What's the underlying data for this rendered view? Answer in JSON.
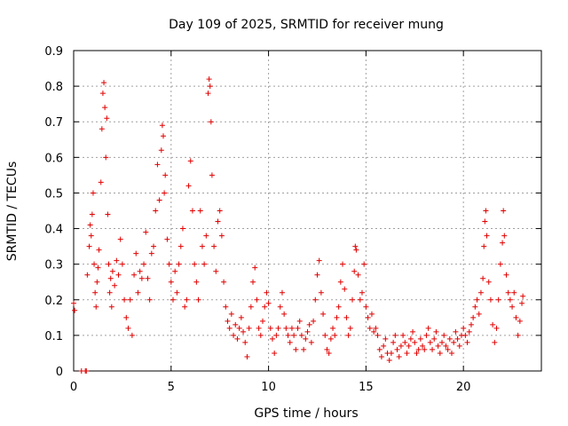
{
  "colors": {
    "series": "#e00000",
    "grid": "#a0a0a0",
    "axis": "#000000",
    "background": "#ffffff"
  },
  "chart_data": {
    "type": "scatter",
    "title": "Day 109 of 2025, SRMTID for receiver mung",
    "xlabel": "GPS time / hours",
    "ylabel": "SRMTID / TECUs",
    "xlim": [
      0,
      24
    ],
    "ylim": [
      0,
      0.9
    ],
    "xticks": [
      0,
      5,
      10,
      15,
      20
    ],
    "xtick_labels": [
      "0",
      "5",
      "10",
      "15",
      "20"
    ],
    "yticks": [
      0,
      0.1,
      0.2,
      0.3,
      0.4,
      0.5,
      0.6,
      0.7,
      0.8,
      0.9
    ],
    "ytick_labels": [
      "0",
      "0.1",
      "0.2",
      "0.3",
      "0.4",
      "0.5",
      "0.6",
      "0.7",
      "0.8",
      "0.9"
    ],
    "grid": true,
    "marker": "plus",
    "series": [
      {
        "name": "SRMTID",
        "points": [
          [
            0.0,
            0.19
          ],
          [
            0.05,
            0.17
          ],
          [
            0.4,
            0.0
          ],
          [
            0.6,
            0.0
          ],
          [
            0.65,
            0.0
          ],
          [
            0.7,
            0.27
          ],
          [
            0.8,
            0.35
          ],
          [
            0.85,
            0.41
          ],
          [
            0.9,
            0.38
          ],
          [
            0.95,
            0.44
          ],
          [
            1.0,
            0.5
          ],
          [
            1.05,
            0.3
          ],
          [
            1.1,
            0.22
          ],
          [
            1.15,
            0.18
          ],
          [
            1.2,
            0.25
          ],
          [
            1.25,
            0.29
          ],
          [
            1.3,
            0.34
          ],
          [
            1.4,
            0.53
          ],
          [
            1.45,
            0.68
          ],
          [
            1.5,
            0.78
          ],
          [
            1.55,
            0.81
          ],
          [
            1.6,
            0.74
          ],
          [
            1.65,
            0.6
          ],
          [
            1.7,
            0.71
          ],
          [
            1.75,
            0.44
          ],
          [
            1.8,
            0.3
          ],
          [
            1.85,
            0.22
          ],
          [
            1.9,
            0.26
          ],
          [
            1.95,
            0.18
          ],
          [
            2.0,
            0.28
          ],
          [
            2.1,
            0.24
          ],
          [
            2.2,
            0.31
          ],
          [
            2.3,
            0.27
          ],
          [
            2.4,
            0.37
          ],
          [
            2.5,
            0.3
          ],
          [
            2.6,
            0.2
          ],
          [
            2.7,
            0.15
          ],
          [
            2.8,
            0.12
          ],
          [
            2.9,
            0.2
          ],
          [
            3.0,
            0.1
          ],
          [
            3.1,
            0.27
          ],
          [
            3.2,
            0.33
          ],
          [
            3.3,
            0.22
          ],
          [
            3.4,
            0.28
          ],
          [
            3.5,
            0.26
          ],
          [
            3.6,
            0.3
          ],
          [
            3.7,
            0.39
          ],
          [
            3.8,
            0.26
          ],
          [
            3.9,
            0.2
          ],
          [
            4.0,
            0.33
          ],
          [
            4.1,
            0.35
          ],
          [
            4.2,
            0.45
          ],
          [
            4.3,
            0.58
          ],
          [
            4.4,
            0.48
          ],
          [
            4.5,
            0.62
          ],
          [
            4.55,
            0.69
          ],
          [
            4.6,
            0.66
          ],
          [
            4.65,
            0.5
          ],
          [
            4.7,
            0.55
          ],
          [
            4.8,
            0.37
          ],
          [
            4.9,
            0.3
          ],
          [
            5.0,
            0.25
          ],
          [
            5.1,
            0.2
          ],
          [
            5.2,
            0.28
          ],
          [
            5.3,
            0.22
          ],
          [
            5.4,
            0.3
          ],
          [
            5.5,
            0.35
          ],
          [
            5.6,
            0.4
          ],
          [
            5.7,
            0.18
          ],
          [
            5.8,
            0.2
          ],
          [
            5.9,
            0.52
          ],
          [
            6.0,
            0.59
          ],
          [
            6.1,
            0.45
          ],
          [
            6.2,
            0.3
          ],
          [
            6.3,
            0.25
          ],
          [
            6.4,
            0.2
          ],
          [
            6.5,
            0.45
          ],
          [
            6.6,
            0.35
          ],
          [
            6.7,
            0.3
          ],
          [
            6.8,
            0.38
          ],
          [
            6.9,
            0.78
          ],
          [
            6.95,
            0.82
          ],
          [
            7.0,
            0.8
          ],
          [
            7.05,
            0.7
          ],
          [
            7.1,
            0.55
          ],
          [
            7.2,
            0.35
          ],
          [
            7.3,
            0.28
          ],
          [
            7.4,
            0.42
          ],
          [
            7.5,
            0.45
          ],
          [
            7.6,
            0.38
          ],
          [
            7.7,
            0.25
          ],
          [
            7.8,
            0.18
          ],
          [
            7.9,
            0.14
          ],
          [
            8.0,
            0.12
          ],
          [
            8.1,
            0.16
          ],
          [
            8.2,
            0.1
          ],
          [
            8.3,
            0.13
          ],
          [
            8.4,
            0.09
          ],
          [
            8.5,
            0.12
          ],
          [
            8.6,
            0.15
          ],
          [
            8.7,
            0.11
          ],
          [
            8.8,
            0.08
          ],
          [
            8.9,
            0.04
          ],
          [
            9.0,
            0.12
          ],
          [
            9.1,
            0.18
          ],
          [
            9.2,
            0.25
          ],
          [
            9.3,
            0.29
          ],
          [
            9.4,
            0.2
          ],
          [
            9.5,
            0.12
          ],
          [
            9.6,
            0.1
          ],
          [
            9.7,
            0.14
          ],
          [
            9.8,
            0.18
          ],
          [
            9.9,
            0.22
          ],
          [
            10.0,
            0.19
          ],
          [
            10.1,
            0.12
          ],
          [
            10.2,
            0.09
          ],
          [
            10.3,
            0.05
          ],
          [
            10.4,
            0.1
          ],
          [
            10.5,
            0.12
          ],
          [
            10.6,
            0.18
          ],
          [
            10.7,
            0.22
          ],
          [
            10.8,
            0.16
          ],
          [
            10.9,
            0.12
          ],
          [
            11.0,
            0.1
          ],
          [
            11.1,
            0.08
          ],
          [
            11.2,
            0.12
          ],
          [
            11.3,
            0.1
          ],
          [
            11.4,
            0.06
          ],
          [
            11.5,
            0.12
          ],
          [
            11.6,
            0.14
          ],
          [
            11.7,
            0.1
          ],
          [
            11.8,
            0.06
          ],
          [
            11.9,
            0.09
          ],
          [
            12.0,
            0.11
          ],
          [
            12.1,
            0.13
          ],
          [
            12.2,
            0.08
          ],
          [
            12.3,
            0.14
          ],
          [
            12.4,
            0.2
          ],
          [
            12.5,
            0.27
          ],
          [
            12.6,
            0.31
          ],
          [
            12.7,
            0.22
          ],
          [
            12.8,
            0.16
          ],
          [
            12.9,
            0.1
          ],
          [
            13.0,
            0.06
          ],
          [
            13.1,
            0.05
          ],
          [
            13.2,
            0.09
          ],
          [
            13.3,
            0.12
          ],
          [
            13.4,
            0.1
          ],
          [
            13.5,
            0.15
          ],
          [
            13.6,
            0.18
          ],
          [
            13.7,
            0.25
          ],
          [
            13.8,
            0.3
          ],
          [
            13.9,
            0.23
          ],
          [
            14.0,
            0.15
          ],
          [
            14.1,
            0.1
          ],
          [
            14.2,
            0.12
          ],
          [
            14.3,
            0.2
          ],
          [
            14.4,
            0.28
          ],
          [
            14.45,
            0.35
          ],
          [
            14.5,
            0.34
          ],
          [
            14.6,
            0.27
          ],
          [
            14.7,
            0.2
          ],
          [
            14.8,
            0.22
          ],
          [
            14.9,
            0.3
          ],
          [
            15.0,
            0.18
          ],
          [
            15.1,
            0.15
          ],
          [
            15.2,
            0.12
          ],
          [
            15.3,
            0.16
          ],
          [
            15.4,
            0.11
          ],
          [
            15.5,
            0.12
          ],
          [
            15.6,
            0.1
          ],
          [
            15.7,
            0.06
          ],
          [
            15.8,
            0.04
          ],
          [
            15.9,
            0.07
          ],
          [
            16.0,
            0.09
          ],
          [
            16.1,
            0.05
          ],
          [
            16.2,
            0.03
          ],
          [
            16.3,
            0.05
          ],
          [
            16.4,
            0.08
          ],
          [
            16.5,
            0.1
          ],
          [
            16.6,
            0.06
          ],
          [
            16.7,
            0.04
          ],
          [
            16.8,
            0.07
          ],
          [
            16.9,
            0.1
          ],
          [
            17.0,
            0.08
          ],
          [
            17.1,
            0.05
          ],
          [
            17.2,
            0.07
          ],
          [
            17.3,
            0.09
          ],
          [
            17.4,
            0.11
          ],
          [
            17.5,
            0.08
          ],
          [
            17.6,
            0.05
          ],
          [
            17.7,
            0.06
          ],
          [
            17.8,
            0.09
          ],
          [
            17.9,
            0.07
          ],
          [
            18.0,
            0.06
          ],
          [
            18.1,
            0.1
          ],
          [
            18.2,
            0.12
          ],
          [
            18.3,
            0.08
          ],
          [
            18.4,
            0.06
          ],
          [
            18.5,
            0.09
          ],
          [
            18.6,
            0.11
          ],
          [
            18.7,
            0.07
          ],
          [
            18.8,
            0.05
          ],
          [
            18.9,
            0.08
          ],
          [
            19.0,
            0.1
          ],
          [
            19.1,
            0.07
          ],
          [
            19.2,
            0.06
          ],
          [
            19.3,
            0.09
          ],
          [
            19.4,
            0.05
          ],
          [
            19.5,
            0.08
          ],
          [
            19.6,
            0.11
          ],
          [
            19.7,
            0.09
          ],
          [
            19.8,
            0.07
          ],
          [
            19.9,
            0.1
          ],
          [
            20.0,
            0.12
          ],
          [
            20.1,
            0.1
          ],
          [
            20.2,
            0.08
          ],
          [
            20.3,
            0.11
          ],
          [
            20.4,
            0.13
          ],
          [
            20.5,
            0.15
          ],
          [
            20.6,
            0.18
          ],
          [
            20.7,
            0.2
          ],
          [
            20.8,
            0.16
          ],
          [
            20.9,
            0.22
          ],
          [
            21.0,
            0.26
          ],
          [
            21.05,
            0.35
          ],
          [
            21.1,
            0.42
          ],
          [
            21.15,
            0.45
          ],
          [
            21.2,
            0.38
          ],
          [
            21.3,
            0.25
          ],
          [
            21.4,
            0.2
          ],
          [
            21.5,
            0.13
          ],
          [
            21.6,
            0.08
          ],
          [
            21.7,
            0.12
          ],
          [
            21.8,
            0.2
          ],
          [
            21.9,
            0.3
          ],
          [
            22.0,
            0.36
          ],
          [
            22.05,
            0.45
          ],
          [
            22.1,
            0.38
          ],
          [
            22.2,
            0.27
          ],
          [
            22.3,
            0.22
          ],
          [
            22.4,
            0.2
          ],
          [
            22.5,
            0.18
          ],
          [
            22.6,
            0.22
          ],
          [
            22.7,
            0.15
          ],
          [
            22.8,
            0.1
          ],
          [
            22.9,
            0.14
          ],
          [
            23.0,
            0.19
          ],
          [
            23.05,
            0.21
          ]
        ]
      }
    ]
  }
}
